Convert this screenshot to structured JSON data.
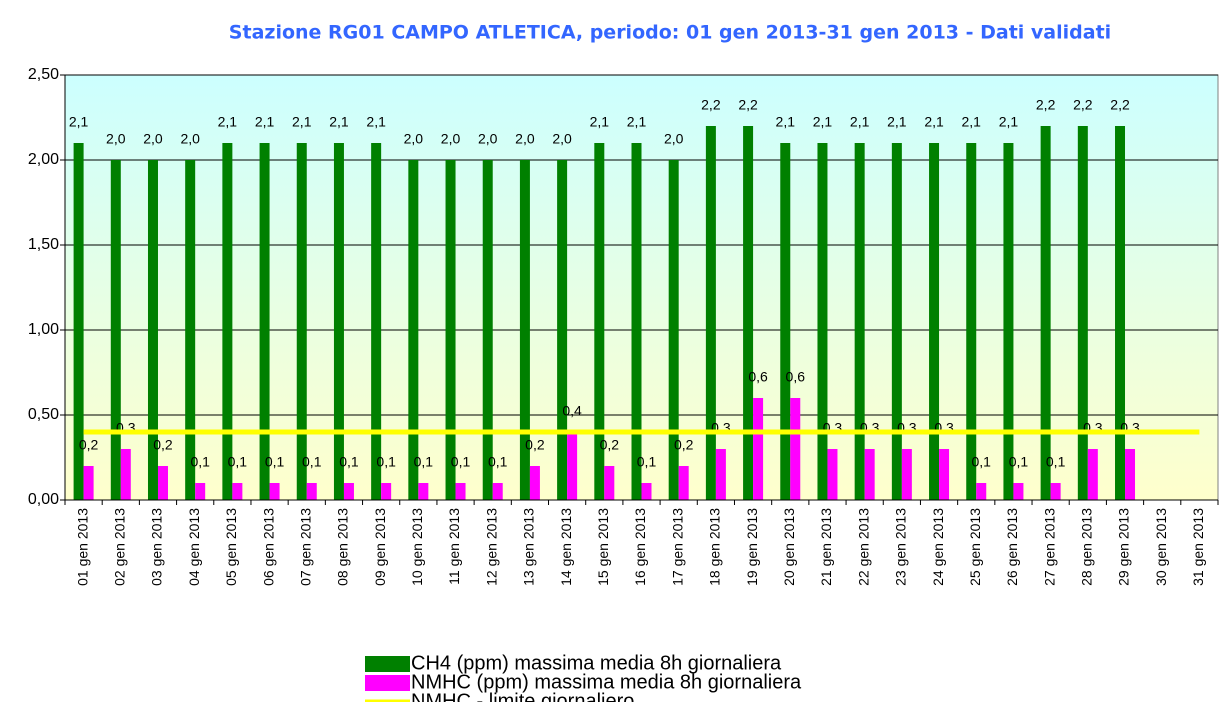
{
  "chart_data": {
    "type": "bar",
    "title": "Stazione RG01 CAMPO ATLETICA, periodo: 01 gen 2013-31 gen 2013 - Dati validati",
    "categories": [
      "01 gen 2013",
      "02 gen 2013",
      "03 gen 2013",
      "04 gen 2013",
      "05 gen 2013",
      "06 gen 2013",
      "07 gen 2013",
      "08 gen 2013",
      "09 gen 2013",
      "10 gen 2013",
      "11 gen 2013",
      "12 gen 2013",
      "13 gen 2013",
      "14 gen 2013",
      "15 gen 2013",
      "16 gen 2013",
      "17 gen 2013",
      "18 gen 2013",
      "19 gen 2013",
      "20 gen 2013",
      "21 gen 2013",
      "22 gen 2013",
      "23 gen 2013",
      "24 gen 2013",
      "25 gen 2013",
      "26 gen 2013",
      "27 gen 2013",
      "28 gen 2013",
      "29 gen 2013",
      "30 gen 2013",
      "31 gen 2013"
    ],
    "series": [
      {
        "name": "CH4 (ppm) massima media 8h giornaliera",
        "color": "#008000",
        "kind": "bar",
        "values": [
          2.1,
          2.0,
          2.0,
          2.0,
          2.1,
          2.1,
          2.1,
          2.1,
          2.1,
          2.0,
          2.0,
          2.0,
          2.0,
          2.0,
          2.1,
          2.1,
          2.0,
          2.2,
          2.2,
          2.1,
          2.1,
          2.1,
          2.1,
          2.1,
          2.1,
          2.1,
          2.2,
          2.2,
          2.2,
          null,
          null
        ],
        "value_labels": [
          "2,1",
          "2,0",
          "2,0",
          "2,0",
          "2,1",
          "2,1",
          "2,1",
          "2,1",
          "2,1",
          "2,0",
          "2,0",
          "2,0",
          "2,0",
          "2,0",
          "2,1",
          "2,1",
          "2,0",
          "2,2",
          "2,2",
          "2,1",
          "2,1",
          "2,1",
          "2,1",
          "2,1",
          "2,1",
          "2,1",
          "2,2",
          "2,2",
          "2,2",
          null,
          null
        ]
      },
      {
        "name": "NMHC (ppm) massima media 8h giornaliera",
        "color": "#ff00ff",
        "kind": "bar",
        "values": [
          0.2,
          0.3,
          0.2,
          0.1,
          0.1,
          0.1,
          0.1,
          0.1,
          0.1,
          0.1,
          0.1,
          0.1,
          0.2,
          0.4,
          0.2,
          0.1,
          0.2,
          0.3,
          0.6,
          0.6,
          0.3,
          0.3,
          0.3,
          0.3,
          0.1,
          0.1,
          0.1,
          0.3,
          0.3,
          null,
          null
        ],
        "value_labels": [
          "0,2",
          "0,3",
          "0,2",
          "0,1",
          "0,1",
          "0,1",
          "0,1",
          "0,1",
          "0,1",
          "0,1",
          "0,1",
          "0,1",
          "0,2",
          "0,4",
          "0,2",
          "0,1",
          "0,2",
          "0,3",
          "0,6",
          "0,6",
          "0,3",
          "0,3",
          "0,3",
          "0,3",
          "0,1",
          "0,1",
          "0,1",
          "0,3",
          "0,3",
          null,
          null
        ]
      },
      {
        "name": "NMHC - limite giornaliero",
        "color": "#ffff00",
        "kind": "line",
        "values": [
          0.4,
          0.4,
          0.4,
          0.4,
          0.4,
          0.4,
          0.4,
          0.4,
          0.4,
          0.4,
          0.4,
          0.4,
          0.4,
          0.4,
          0.4,
          0.4,
          0.4,
          0.4,
          0.4,
          0.4,
          0.4,
          0.4,
          0.4,
          0.4,
          0.4,
          0.4,
          0.4,
          0.4,
          0.4,
          0.4,
          0.4
        ]
      }
    ],
    "ylim": [
      0,
      2.5
    ],
    "yticks": [
      {
        "value": 0,
        "label": "0,00"
      },
      {
        "value": 0.5,
        "label": "0,50"
      },
      {
        "value": 1,
        "label": "1,00"
      },
      {
        "value": 1.5,
        "label": "1,50"
      },
      {
        "value": 2,
        "label": "2,00"
      },
      {
        "value": 2.5,
        "label": "2,50"
      }
    ],
    "grid": true
  }
}
